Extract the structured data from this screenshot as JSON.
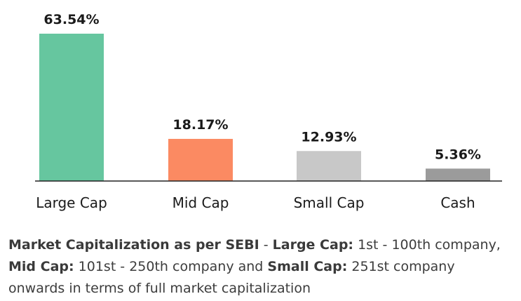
{
  "chart_data": {
    "type": "bar",
    "categories": [
      "Large Cap",
      "Mid Cap",
      "Small Cap",
      "Cash"
    ],
    "values": [
      63.54,
      18.17,
      12.93,
      5.36
    ],
    "value_labels": [
      "63.54%",
      "18.17%",
      "12.93%",
      "5.36%"
    ],
    "colors": [
      "#66c69f",
      "#fb8a62",
      "#c8c8c8",
      "#9b9b9b"
    ],
    "ylim": [
      0,
      63.54
    ],
    "grid": false,
    "legend": "none",
    "title": "",
    "xlabel": "",
    "ylabel": ""
  },
  "footnote": {
    "intro_bold": "Market Capitalization as per SEBI",
    "sep": " - ",
    "large_bold": "Large Cap:",
    "large_text": " 1st - 100th company, ",
    "mid_bold": "Mid Cap:",
    "mid_text": " 101st - 250th company and ",
    "small_bold": "Small Cap:",
    "small_text": " 251st company onwards in terms of full market capitalization"
  }
}
